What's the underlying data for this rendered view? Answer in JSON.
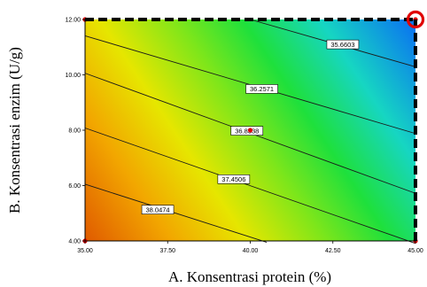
{
  "chart_data": {
    "type": "heatmap",
    "subtype": "contour",
    "title": "",
    "xlabel": "A. Konsentrasi protein (%)",
    "ylabel": "B. Konsentrasi enzim (U/g)",
    "xlim": [
      35.0,
      45.0
    ],
    "ylim": [
      4.0,
      12.0
    ],
    "x_ticks": [
      "35.00",
      "37.50",
      "40.00",
      "42.50",
      "45.00"
    ],
    "y_ticks": [
      "4.00",
      "6.00",
      "8.00",
      "10.00",
      "12.00"
    ],
    "color_scale": {
      "high": "#e05a00",
      "mid": "#1ee03c",
      "low": "#0a6ff2",
      "highlight_color": "#e00000"
    },
    "contours": [
      {
        "label": "35.6603",
        "value": 35.6603,
        "line": [
          [
            40.0,
            12.0
          ],
          [
            45.0,
            10.29
          ]
        ],
        "label_at": [
          42.8,
          11.1
        ]
      },
      {
        "label": "36.2571",
        "value": 36.2571,
        "line": [
          [
            35.0,
            11.41
          ],
          [
            45.0,
            7.88
          ]
        ],
        "label_at": [
          40.35,
          9.49
        ]
      },
      {
        "label": "36.8538",
        "value": 36.8538,
        "line": [
          [
            35.0,
            10.06
          ],
          [
            45.0,
            5.72
          ]
        ],
        "label_at": [
          39.9,
          7.98
        ]
      },
      {
        "label": "37.4506",
        "value": 37.4506,
        "line": [
          [
            35.0,
            8.08
          ],
          [
            45.0,
            3.91
          ]
        ],
        "label_at": [
          39.5,
          6.23
        ]
      },
      {
        "label": "38.0474",
        "value": 38.0474,
        "line": [
          [
            35.0,
            6.05
          ],
          [
            40.5,
            3.95
          ]
        ],
        "label_at": [
          37.2,
          5.13
        ]
      }
    ],
    "design_points": [
      [
        35.0,
        4.0
      ],
      [
        45.0,
        4.0
      ],
      [
        35.0,
        12.0
      ],
      [
        45.0,
        12.0
      ],
      [
        40.0,
        8.0
      ]
    ],
    "highlighted_point": [
      45.0,
      12.0
    ],
    "dashed_border_edges": [
      "top",
      "right"
    ]
  }
}
